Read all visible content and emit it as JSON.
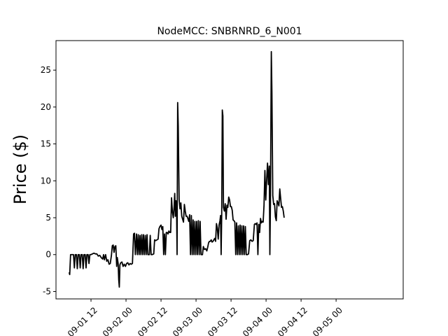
{
  "chart_data": {
    "type": "line",
    "title": "NodeMCC: SNBRNRD_6_N001",
    "xlabel": "",
    "ylabel": "Price ($)",
    "ylim": [
      -6,
      29
    ],
    "xlim": [
      "2025-09-01 00:00",
      "2025-09-05 23:00"
    ],
    "x_unit": "hours",
    "x_start": "2025-09-01 00:00",
    "y_ticks": [
      -5,
      0,
      5,
      10,
      15,
      20,
      25
    ],
    "x_ticks": [
      {
        "label": "09-01 12",
        "hour": 12
      },
      {
        "label": "09-02 00",
        "hour": 24
      },
      {
        "label": "09-02 12",
        "hour": 36
      },
      {
        "label": "09-03 00",
        "hour": 48
      },
      {
        "label": "09-03 12",
        "hour": 60
      },
      {
        "label": "09-04 00",
        "hour": 72
      },
      {
        "label": "09-04 12",
        "hour": 84
      },
      {
        "label": "09-05 00",
        "hour": 96
      }
    ],
    "line_color": "#000000",
    "grid": false,
    "legend": "none",
    "series": [
      {
        "values": [
          [
            4.5,
            -2.4
          ],
          [
            4.7,
            -2.7
          ],
          [
            5.0,
            0.0
          ],
          [
            5.5,
            0.0
          ],
          [
            6.0,
            0.0
          ],
          [
            6.3,
            -1.8
          ],
          [
            6.6,
            0.0
          ],
          [
            7.0,
            0.0
          ],
          [
            7.3,
            -1.9
          ],
          [
            7.6,
            0.0
          ],
          [
            8.0,
            0.0
          ],
          [
            8.3,
            -1.8
          ],
          [
            8.6,
            0.0
          ],
          [
            9.0,
            0.0
          ],
          [
            9.3,
            -1.9
          ],
          [
            9.6,
            0.0
          ],
          [
            10.0,
            0.0
          ],
          [
            10.3,
            -1.8
          ],
          [
            10.6,
            0.0
          ],
          [
            11.0,
            0.0
          ],
          [
            11.3,
            -1.2
          ],
          [
            11.6,
            0.0
          ],
          [
            12.0,
            0.0
          ],
          [
            12.5,
            0.1
          ],
          [
            13.0,
            0.2
          ],
          [
            13.5,
            0.1
          ],
          [
            14.0,
            0.1
          ],
          [
            14.5,
            -0.2
          ],
          [
            15.0,
            -0.1
          ],
          [
            15.5,
            -0.4
          ],
          [
            16.0,
            -0.6
          ],
          [
            16.3,
            0.0
          ],
          [
            16.6,
            -0.7
          ],
          [
            17.0,
            0.0
          ],
          [
            17.4,
            -0.9
          ],
          [
            17.8,
            -0.7
          ],
          [
            18.2,
            -1.3
          ],
          [
            18.6,
            -1.2
          ],
          [
            19.0,
            -0.1
          ],
          [
            19.3,
            1.2
          ],
          [
            19.6,
            1.3
          ],
          [
            19.9,
            0.3
          ],
          [
            20.2,
            1.1
          ],
          [
            20.5,
            1.2
          ],
          [
            20.8,
            -1.6
          ],
          [
            21.0,
            -0.4
          ],
          [
            21.3,
            -1.2
          ],
          [
            21.5,
            -3.4
          ],
          [
            21.7,
            -4.4
          ],
          [
            21.9,
            -1.4
          ],
          [
            22.2,
            -1.1
          ],
          [
            22.6,
            -1.0
          ],
          [
            23.0,
            -1.6
          ],
          [
            23.4,
            -1.3
          ],
          [
            23.8,
            -1.6
          ],
          [
            24.2,
            -1.2
          ],
          [
            24.6,
            -1.1
          ],
          [
            25.0,
            -1.4
          ],
          [
            25.4,
            -1.2
          ],
          [
            25.8,
            -1.3
          ],
          [
            26.2,
            -1.2
          ],
          [
            26.6,
            2.8
          ],
          [
            26.9,
            2.9
          ],
          [
            27.2,
            0.0
          ],
          [
            27.6,
            2.8
          ],
          [
            27.9,
            0.0
          ],
          [
            28.2,
            2.7
          ],
          [
            28.5,
            0.0
          ],
          [
            28.8,
            2.6
          ],
          [
            29.1,
            0.0
          ],
          [
            29.4,
            2.7
          ],
          [
            29.7,
            0.0
          ],
          [
            30.0,
            2.7
          ],
          [
            30.3,
            0.0
          ],
          [
            30.6,
            2.6
          ],
          [
            30.9,
            0.0
          ],
          [
            31.2,
            2.7
          ],
          [
            31.5,
            0.0
          ],
          [
            32.0,
            0.0
          ],
          [
            32.3,
            2.6
          ],
          [
            32.6,
            0.0
          ],
          [
            33.0,
            0.0
          ],
          [
            33.5,
            0.1
          ],
          [
            33.8,
            2.0
          ],
          [
            34.2,
            1.9
          ],
          [
            34.6,
            2.0
          ],
          [
            35.0,
            2.1
          ],
          [
            35.3,
            3.5
          ],
          [
            35.6,
            3.8
          ],
          [
            36.0,
            4.0
          ],
          [
            36.3,
            3.4
          ],
          [
            36.6,
            3.8
          ],
          [
            36.9,
            0.0
          ],
          [
            37.2,
            2.8
          ],
          [
            37.5,
            0.0
          ],
          [
            37.8,
            3.0
          ],
          [
            38.1,
            3.0
          ],
          [
            38.4,
            2.8
          ],
          [
            38.7,
            3.2
          ],
          [
            39.0,
            3.0
          ],
          [
            39.3,
            3.0
          ],
          [
            39.6,
            7.7
          ],
          [
            39.9,
            5.8
          ],
          [
            40.2,
            5.0
          ],
          [
            40.5,
            6.6
          ],
          [
            40.7,
            8.3
          ],
          [
            40.9,
            5.2
          ],
          [
            41.1,
            7.3
          ],
          [
            41.3,
            7.2
          ],
          [
            41.5,
            0.0
          ],
          [
            41.7,
            20.6
          ],
          [
            41.9,
            17.4
          ],
          [
            42.2,
            7.5
          ],
          [
            42.5,
            6.2
          ],
          [
            42.8,
            7.0
          ],
          [
            43.1,
            5.2
          ],
          [
            43.4,
            4.8
          ],
          [
            43.7,
            4.4
          ],
          [
            44.0,
            6.8
          ],
          [
            44.3,
            5.9
          ],
          [
            44.6,
            5.2
          ],
          [
            44.9,
            5.2
          ],
          [
            45.2,
            4.9
          ],
          [
            45.5,
            4.5
          ],
          [
            45.8,
            5.4
          ],
          [
            46.1,
            0.0
          ],
          [
            46.4,
            5.3
          ],
          [
            46.7,
            0.0
          ],
          [
            47.0,
            4.7
          ],
          [
            47.3,
            0.0
          ],
          [
            47.6,
            4.5
          ],
          [
            47.9,
            0.0
          ],
          [
            48.2,
            4.5
          ],
          [
            48.5,
            0.0
          ],
          [
            48.8,
            4.6
          ],
          [
            49.1,
            0.0
          ],
          [
            49.4,
            4.5
          ],
          [
            49.7,
            0.0
          ],
          [
            50.2,
            0.0
          ],
          [
            50.5,
            1.1
          ],
          [
            50.9,
            0.7
          ],
          [
            51.3,
            0.8
          ],
          [
            51.7,
            0.5
          ],
          [
            52.0,
            1.0
          ],
          [
            52.3,
            1.6
          ],
          [
            52.6,
            1.8
          ],
          [
            52.9,
            1.8
          ],
          [
            53.2,
            2.0
          ],
          [
            53.5,
            1.7
          ],
          [
            53.8,
            1.8
          ],
          [
            54.1,
            2.0
          ],
          [
            54.4,
            2.2
          ],
          [
            54.7,
            1.8
          ],
          [
            55.0,
            4.2
          ],
          [
            55.3,
            3.6
          ],
          [
            55.6,
            2.1
          ],
          [
            55.9,
            4.0
          ],
          [
            56.2,
            4.6
          ],
          [
            56.4,
            5.3
          ],
          [
            56.6,
            0.0
          ],
          [
            56.8,
            5.6
          ],
          [
            57.0,
            19.6
          ],
          [
            57.2,
            18.8
          ],
          [
            57.4,
            6.4
          ],
          [
            57.7,
            5.9
          ],
          [
            58.0,
            6.9
          ],
          [
            58.3,
            4.8
          ],
          [
            58.6,
            6.7
          ],
          [
            58.9,
            6.4
          ],
          [
            59.2,
            7.8
          ],
          [
            59.5,
            7.4
          ],
          [
            59.8,
            6.5
          ],
          [
            60.1,
            6.5
          ],
          [
            60.4,
            6.0
          ],
          [
            60.7,
            4.7
          ],
          [
            61.0,
            4.6
          ],
          [
            61.3,
            4.4
          ],
          [
            61.6,
            0.0
          ],
          [
            61.9,
            4.3
          ],
          [
            62.2,
            0.0
          ],
          [
            62.5,
            3.9
          ],
          [
            62.8,
            0.0
          ],
          [
            63.1,
            4.0
          ],
          [
            63.4,
            0.0
          ],
          [
            63.7,
            3.9
          ],
          [
            64.0,
            0.0
          ],
          [
            64.3,
            3.9
          ],
          [
            64.6,
            0.0
          ],
          [
            64.9,
            3.8
          ],
          [
            65.2,
            0.0
          ],
          [
            65.6,
            0.0
          ],
          [
            66.0,
            0.1
          ],
          [
            66.4,
            1.9
          ],
          [
            66.8,
            2.0
          ],
          [
            67.2,
            1.8
          ],
          [
            67.6,
            1.9
          ],
          [
            68.0,
            4.1
          ],
          [
            68.3,
            4.2
          ],
          [
            68.6,
            4.1
          ],
          [
            68.9,
            4.3
          ],
          [
            69.2,
            0.0
          ],
          [
            69.5,
            4.1
          ],
          [
            69.8,
            3.0
          ],
          [
            70.1,
            4.9
          ],
          [
            70.4,
            4.3
          ],
          [
            70.7,
            4.5
          ],
          [
            71.0,
            4.4
          ],
          [
            71.3,
            6.7
          ],
          [
            71.6,
            11.4
          ],
          [
            71.9,
            7.4
          ],
          [
            72.2,
            10.1
          ],
          [
            72.5,
            12.4
          ],
          [
            72.8,
            9.5
          ],
          [
            73.1,
            12.0
          ],
          [
            73.3,
            0.0
          ],
          [
            73.5,
            7.1
          ],
          [
            73.8,
            27.5
          ],
          [
            74.0,
            22.0
          ],
          [
            74.3,
            8.0
          ],
          [
            74.6,
            6.8
          ],
          [
            74.9,
            6.9
          ],
          [
            75.2,
            5.1
          ],
          [
            75.5,
            4.6
          ],
          [
            75.8,
            7.3
          ],
          [
            76.1,
            7.0
          ],
          [
            76.4,
            6.6
          ],
          [
            76.7,
            8.9
          ],
          [
            77.0,
            7.6
          ],
          [
            77.3,
            6.4
          ],
          [
            77.6,
            6.5
          ],
          [
            77.9,
            5.9
          ],
          [
            78.2,
            5.0
          ]
        ]
      }
    ]
  }
}
